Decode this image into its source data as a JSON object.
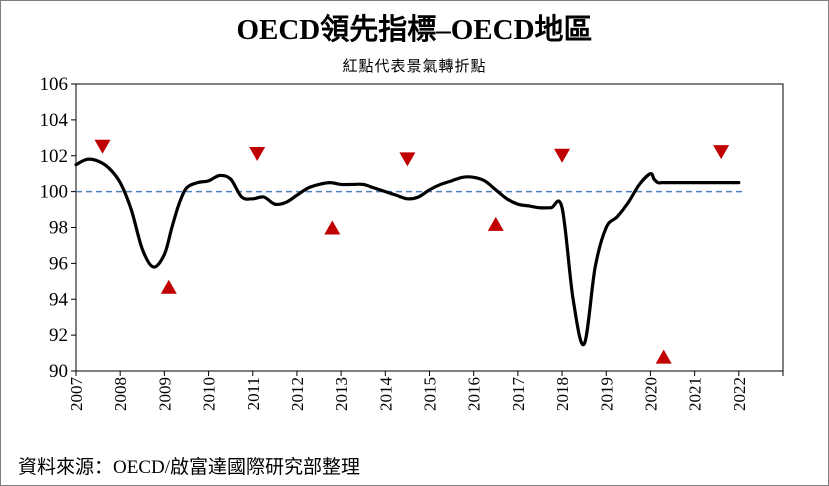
{
  "header": {
    "title": "OECD領先指標–OECD地區",
    "subtitle": "紅點代表景氣轉折點"
  },
  "footer": {
    "source": "資料來源：OECD/啟富達國際研究部整理"
  },
  "colors": {
    "line": "#000000",
    "reference_line": "#4f81bd",
    "marker": "#c00000",
    "axis": "#000000"
  },
  "chart_data": {
    "type": "line",
    "title": "OECD領先指標–OECD地區",
    "subtitle": "紅點代表景氣轉折點",
    "xlabel": "",
    "ylabel": "",
    "xlim": [
      2007,
      2023
    ],
    "ylim": [
      90,
      106
    ],
    "x_ticks": [
      "2007",
      "2008",
      "2009",
      "2010",
      "2011",
      "2012",
      "2013",
      "2014",
      "2015",
      "2016",
      "2017",
      "2018",
      "2019",
      "2020",
      "2021",
      "2022"
    ],
    "y_ticks": [
      90,
      92,
      94,
      96,
      98,
      100,
      102,
      104,
      106
    ],
    "grid": false,
    "reference_line": {
      "y": 100,
      "style": "dashed"
    },
    "series": [
      {
        "style": "solid",
        "x": [
          2007.0,
          2007.25,
          2007.5,
          2007.75,
          2008.0,
          2008.25,
          2008.5,
          2008.75,
          2009.0,
          2009.17,
          2009.33,
          2009.5,
          2009.75,
          2010.0,
          2010.25,
          2010.5,
          2010.75,
          2011.0,
          2011.25,
          2011.5,
          2011.75,
          2012.0,
          2012.25,
          2012.5,
          2012.75,
          2013.0,
          2013.25,
          2013.5,
          2013.75,
          2014.0,
          2014.25,
          2014.5,
          2014.75,
          2015.0,
          2015.25,
          2015.5,
          2015.75,
          2016.0,
          2016.25,
          2016.5,
          2016.75,
          2017.0,
          2017.25,
          2017.5,
          2017.75,
          2018.0,
          2018.25,
          2018.5,
          2018.75,
          2019.0,
          2019.25,
          2019.5,
          2019.75,
          2020.0,
          2020.08,
          2020.17,
          2020.25,
          2020.33,
          2020.42,
          2020.5,
          2020.75,
          2021.0,
          2021.25,
          2021.5,
          2021.75,
          2021.9,
          2022.0
        ],
        "y": [
          101.5,
          101.8,
          101.7,
          101.3,
          100.5,
          99.0,
          96.8,
          95.8,
          96.5,
          98.0,
          99.3,
          100.2,
          100.5,
          100.6,
          100.9,
          100.7,
          99.7,
          99.6,
          99.7,
          99.3,
          99.4,
          99.8,
          100.2,
          100.4,
          100.5,
          100.4,
          100.4,
          100.4,
          100.2,
          100.0,
          99.8,
          99.6,
          99.7,
          100.1,
          100.4,
          100.6,
          100.8,
          100.8,
          100.6,
          100.1,
          99.6,
          99.3,
          99.2,
          99.1,
          99.1,
          99.1,
          94.0,
          91.5,
          95.8,
          98.0,
          98.6,
          99.4,
          100.4,
          101.0,
          100.7,
          100.5,
          100.5,
          100.5,
          100.5,
          100.5,
          100.5,
          100.5,
          100.5,
          100.5,
          100.5,
          100.5,
          100.5
        ]
      }
    ],
    "turning_points": [
      {
        "x": 2007.6,
        "y": 102.5,
        "direction": "peak"
      },
      {
        "x": 2009.1,
        "y": 94.7,
        "direction": "trough"
      },
      {
        "x": 2011.1,
        "y": 102.1,
        "direction": "peak"
      },
      {
        "x": 2012.8,
        "y": 98.0,
        "direction": "trough"
      },
      {
        "x": 2014.5,
        "y": 101.8,
        "direction": "peak"
      },
      {
        "x": 2016.5,
        "y": 98.2,
        "direction": "trough"
      },
      {
        "x": 2018.0,
        "y": 102.0,
        "direction": "peak"
      },
      {
        "x": 2020.3,
        "y": 90.8,
        "direction": "trough"
      },
      {
        "x": 2021.6,
        "y": 102.2,
        "direction": "peak"
      }
    ]
  }
}
